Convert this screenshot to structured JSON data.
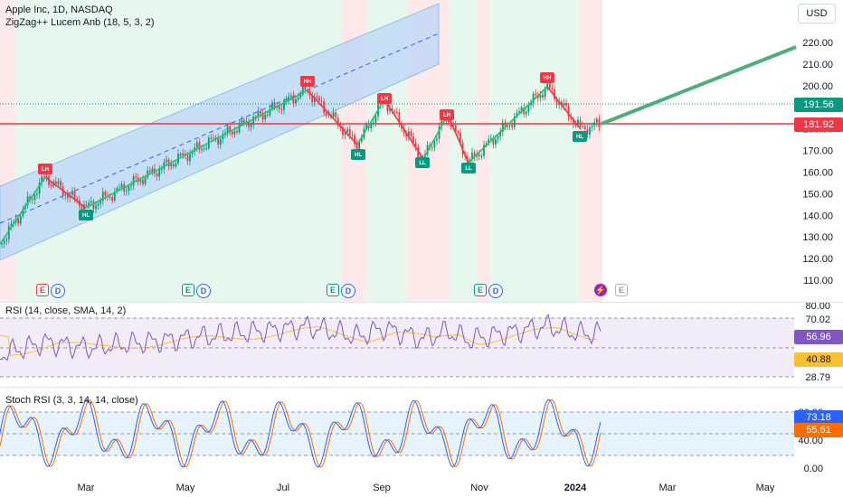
{
  "header": {
    "title": "Apple Inc, 1D, NASDAQ",
    "indicator": "ZigZag++ Lucem Anb (18, 5, 3, 2)",
    "currency_button": "USD"
  },
  "main_axis": {
    "ticks": [
      "220.00",
      "210.00",
      "200.00",
      "190.00",
      "180.00",
      "170.00",
      "160.00",
      "150.00",
      "140.00",
      "130.00",
      "120.00",
      "110.00"
    ],
    "last_price": "191.56",
    "level_price": "181.92",
    "last_price_color": "#089981",
    "level_color": "#f23645"
  },
  "pivots": [
    "LH",
    "HL",
    "HH",
    "HL",
    "LH",
    "LL",
    "LH",
    "LL",
    "HH",
    "HL"
  ],
  "events": [
    "E",
    "D",
    "E",
    "D",
    "E",
    "D",
    "E",
    "D",
    "E"
  ],
  "rsi": {
    "title": "RSI (14, close, SMA, 14, 2)",
    "ticks": [
      "80.00",
      "70.02",
      "28.79"
    ],
    "value": "56.96",
    "sma": "40.88",
    "value_color": "#7e57c2",
    "sma_color": "#fbc02d"
  },
  "stoch": {
    "title": "Stoch RSI (3, 3, 14, 14, close)",
    "ticks": [
      "80.00",
      "40.00",
      "0.00"
    ],
    "k_value": "73.18",
    "d_value": "55.61",
    "k_color": "#2962ff",
    "d_color": "#ff6d00"
  },
  "time_axis": {
    "labels": [
      "Mar",
      "May",
      "Jul",
      "Sep",
      "Nov",
      "2024",
      "Mar",
      "May"
    ]
  }
}
